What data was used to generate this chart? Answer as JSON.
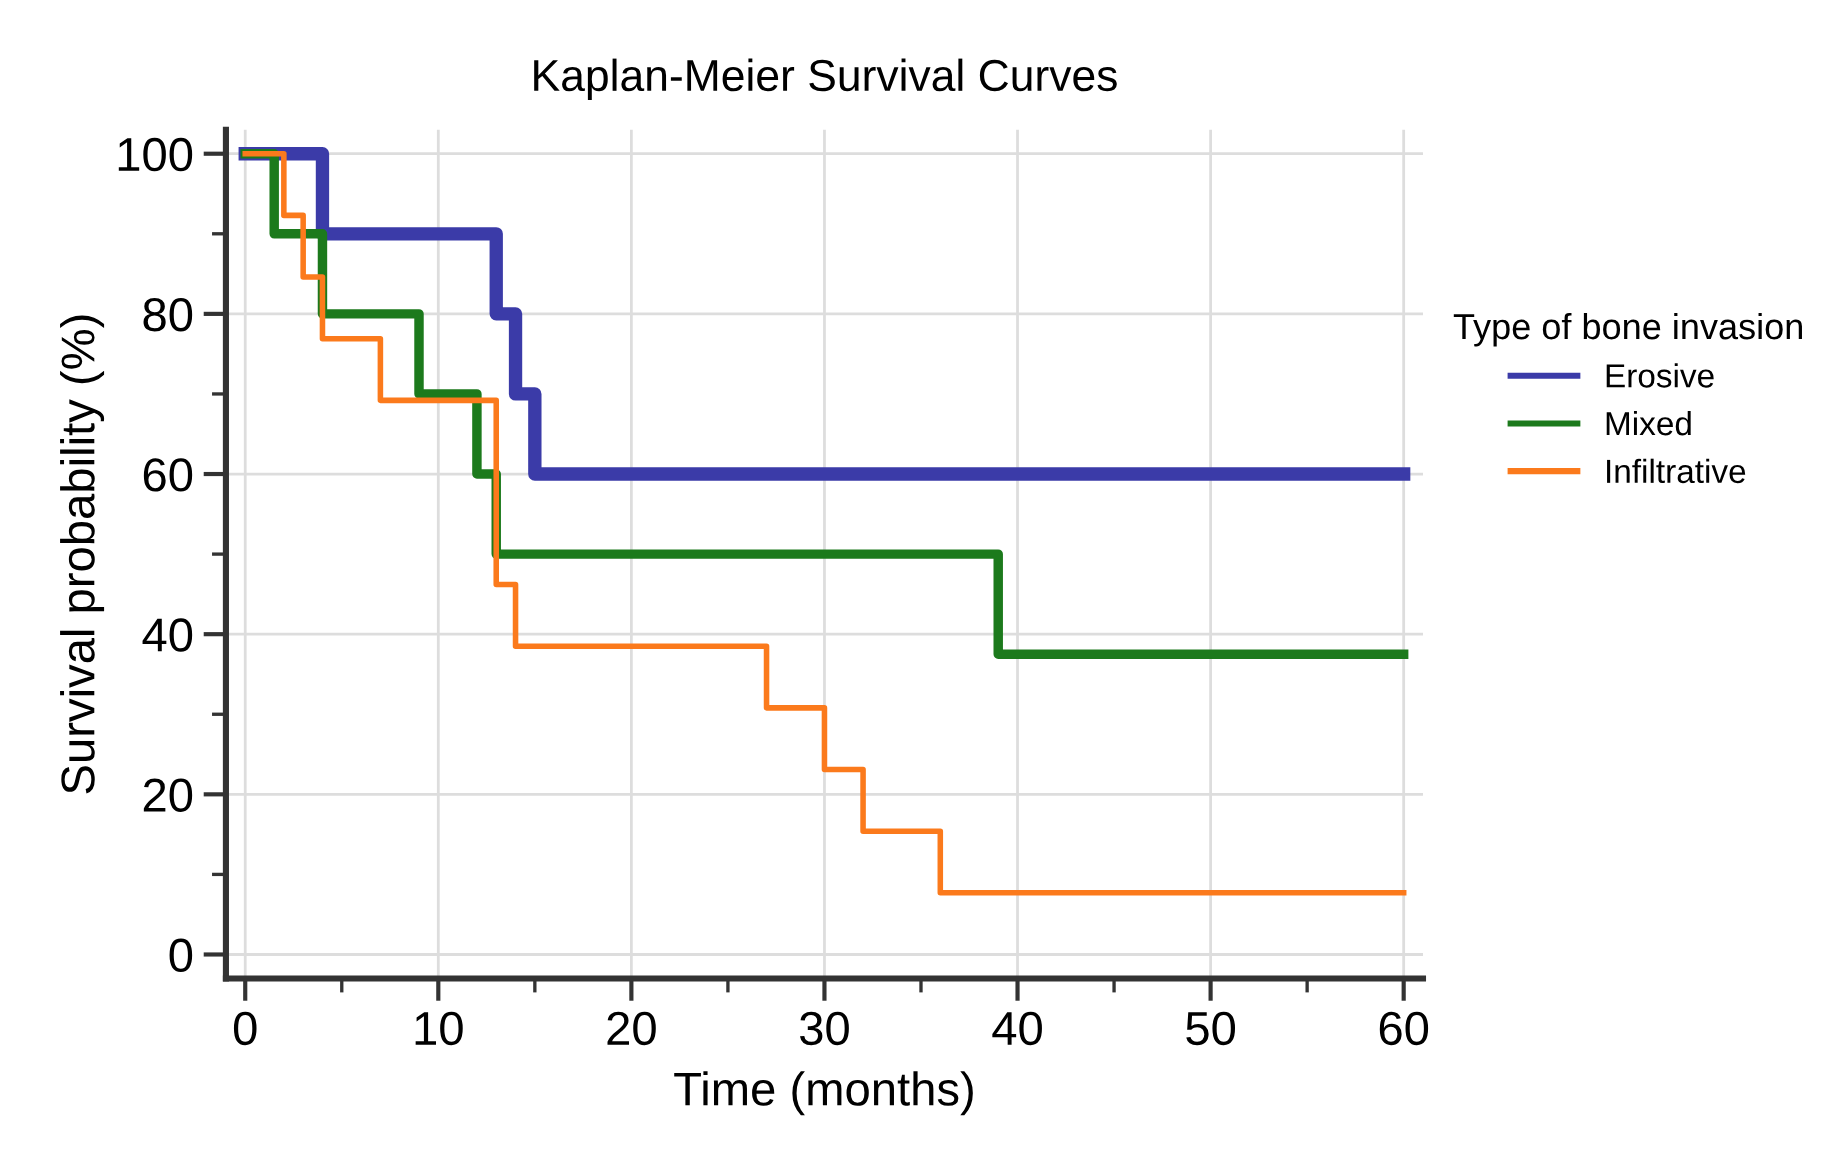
{
  "chart_data": {
    "type": "step",
    "title": "Kaplan-Meier Survival Curves",
    "xlabel": "Time (months)",
    "ylabel": "Survival probability (%)",
    "legend_title": "Type of bone invasion",
    "series": [
      {
        "name": "Erosive",
        "color": "#3b3ba8",
        "x": [
          0,
          4,
          13,
          14,
          15,
          60
        ],
        "values": [
          100,
          90,
          80,
          70,
          60,
          60
        ]
      },
      {
        "name": "Mixed",
        "color": "#1c7a1c",
        "x": [
          0,
          1.5,
          4,
          9,
          12,
          13,
          39,
          60
        ],
        "values": [
          100,
          90,
          80,
          70,
          60,
          50,
          37.5,
          37.5
        ]
      },
      {
        "name": "Infiltrative",
        "color": "#fb7a1c",
        "x": [
          0,
          2,
          3,
          4,
          7,
          13,
          14,
          27,
          30,
          32,
          36,
          60
        ],
        "values": [
          100,
          92.3,
          84.6,
          76.9,
          69.2,
          46.2,
          38.5,
          30.8,
          23.1,
          15.4,
          7.7,
          7.7
        ]
      }
    ],
    "xlim": [
      -1,
      61
    ],
    "ylim": [
      -3,
      103
    ],
    "xticks": [
      0,
      10,
      20,
      30,
      40,
      50,
      60
    ],
    "yticks": [
      0,
      20,
      40,
      60,
      80,
      100
    ],
    "grid": true,
    "legend": "right",
    "marker": "none",
    "line_style": "solid"
  }
}
